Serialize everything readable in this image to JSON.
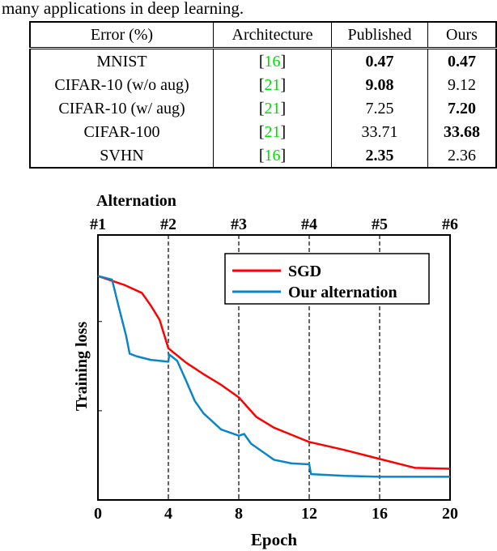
{
  "intro_text": "many applications in deep learning.",
  "table": {
    "headers": [
      "Error (%)",
      "Architecture",
      "Published",
      "Ours"
    ],
    "rows": [
      {
        "dataset": "MNIST",
        "cite": "16",
        "published": "0.47",
        "ours": "0.47",
        "pub_bold": true,
        "ours_bold": true
      },
      {
        "dataset": "CIFAR-10 (w/o aug)",
        "cite": "21",
        "published": "9.08",
        "ours": "9.12",
        "pub_bold": true,
        "ours_bold": false
      },
      {
        "dataset": "CIFAR-10 (w/ aug)",
        "cite": "21",
        "published": "7.25",
        "ours": "7.20",
        "pub_bold": false,
        "ours_bold": true
      },
      {
        "dataset": "CIFAR-100",
        "cite": "21",
        "published": "33.71",
        "ours": "33.68",
        "pub_bold": false,
        "ours_bold": true
      },
      {
        "dataset": "SVHN",
        "cite": "16",
        "published": "2.35",
        "ours": "2.36",
        "pub_bold": true,
        "ours_bold": false
      }
    ],
    "cite_color": "#00e000"
  },
  "chart_data": {
    "type": "line",
    "xlabel": "Epoch",
    "ylabel": "Training loss",
    "top_axis_title": "Alternation",
    "top_ticks": [
      {
        "x": 0,
        "label": "#1"
      },
      {
        "x": 4,
        "label": "#2"
      },
      {
        "x": 8,
        "label": "#3"
      },
      {
        "x": 12,
        "label": "#4"
      },
      {
        "x": 16,
        "label": "#5"
      },
      {
        "x": 20,
        "label": "#6"
      }
    ],
    "xticks": [
      0,
      4,
      8,
      12,
      16,
      20
    ],
    "xlim": [
      0,
      20
    ],
    "ylim": [
      0,
      2.97
    ],
    "yticks": [
      1,
      2
    ],
    "vlines_dashed": [
      4,
      8,
      12,
      16
    ],
    "legend": "top-right",
    "series": [
      {
        "name": "SGD",
        "color": "#ff0000",
        "x": [
          0,
          1.5,
          2.5,
          3,
          3.5,
          4,
          5,
          6,
          7,
          8,
          9,
          10,
          11,
          12,
          14,
          16,
          18,
          20
        ],
        "y": [
          2.51,
          2.41,
          2.32,
          2.18,
          2.02,
          1.7,
          1.54,
          1.41,
          1.29,
          1.15,
          0.93,
          0.81,
          0.73,
          0.65,
          0.56,
          0.46,
          0.36,
          0.35
        ]
      },
      {
        "name": "Our alternation",
        "color": "#0a86c8",
        "x": [
          0,
          0.8,
          1.2,
          1.6,
          1.8,
          2.2,
          3,
          4,
          4.05,
          4.5,
          5,
          5.5,
          6,
          7,
          8,
          8.3,
          8.7,
          9.5,
          10,
          11,
          12,
          12.1,
          14,
          16,
          20
        ],
        "y": [
          2.51,
          2.47,
          2.15,
          1.84,
          1.64,
          1.61,
          1.57,
          1.55,
          1.63,
          1.56,
          1.34,
          1.11,
          0.97,
          0.79,
          0.72,
          0.74,
          0.63,
          0.52,
          0.45,
          0.41,
          0.4,
          0.29,
          0.27,
          0.26,
          0.26
        ]
      }
    ]
  }
}
